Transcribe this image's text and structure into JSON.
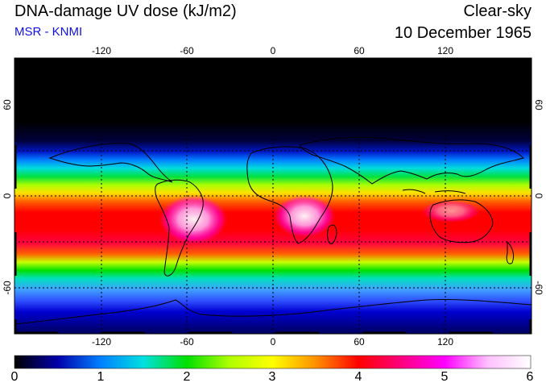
{
  "header": {
    "title": "DNA-damage UV dose (kJ/m2)",
    "subtitle": "MSR - KNMI",
    "sky_condition": "Clear-sky",
    "date": "10 December 1965"
  },
  "map": {
    "lon_ticks": [
      "-120",
      "-60",
      "0",
      "60",
      "120"
    ],
    "lat_ticks": [
      "60",
      "0",
      "-60"
    ],
    "lon_values": [
      -120,
      -60,
      0,
      60,
      120
    ],
    "lat_values": [
      60,
      0,
      -60
    ]
  },
  "colorbar": {
    "labels": [
      "0",
      "1",
      "2",
      "3",
      "4",
      "5",
      "6"
    ],
    "min": 0,
    "max": 6,
    "colors": [
      "#000000",
      "#0000aa",
      "#0080ff",
      "#00e0e0",
      "#00e000",
      "#b0ff00",
      "#ffff00",
      "#ff9000",
      "#ff0000",
      "#ff0080",
      "#ff00ff",
      "#ffc0ff",
      "#ffffff"
    ]
  }
}
